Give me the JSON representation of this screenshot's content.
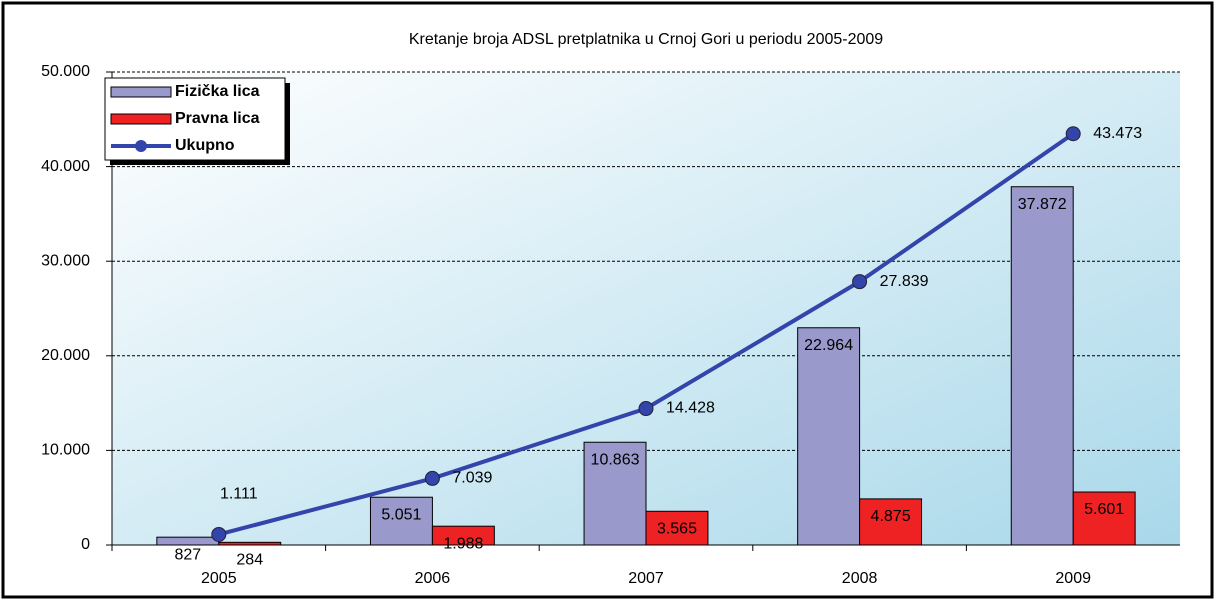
{
  "chart_data": {
    "type": "bar-line",
    "title": "Kretanje broja ADSL pretplatnika u Crnoj Gori u periodu 2005-2009",
    "categories": [
      "2005",
      "2006",
      "2007",
      "2008",
      "2009"
    ],
    "series": [
      {
        "name": "Fizička lica",
        "type": "bar",
        "color": "#9999cc",
        "values": [
          827,
          5051,
          10863,
          22964,
          37872
        ],
        "value_labels": [
          "827",
          "5.051",
          "10.863",
          "22.964",
          "37.872"
        ]
      },
      {
        "name": "Pravna lica",
        "type": "bar",
        "color": "#ee2222",
        "values": [
          284,
          1988,
          3565,
          4875,
          5601
        ],
        "value_labels": [
          "284",
          "1.988",
          "3.565",
          "4.875",
          "5.601"
        ]
      },
      {
        "name": "Ukupno",
        "type": "line",
        "color": "#3344aa",
        "values": [
          1111,
          7039,
          14428,
          27839,
          43473
        ],
        "value_labels": [
          "1.111",
          "7.039",
          "14.428",
          "27.839",
          "43.473"
        ]
      }
    ],
    "ylim": [
      0,
      50000
    ],
    "yticks": [
      0,
      {
        "value": 10000,
        "label": "10.000"
      },
      {
        "value": 20000,
        "label": "20.000"
      },
      {
        "value": 30000,
        "label": "30.000"
      },
      {
        "value": 40000,
        "label": "40.000"
      },
      {
        "value": 50000,
        "label": "50.000"
      }
    ],
    "grid": true,
    "legend": "top-left"
  }
}
